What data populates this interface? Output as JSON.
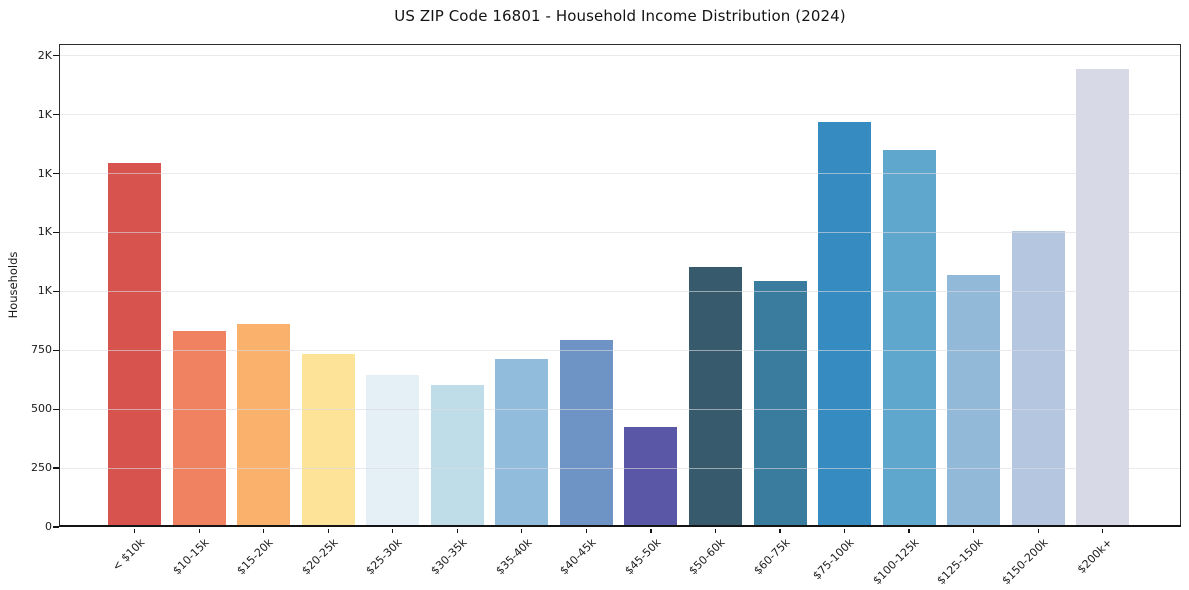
{
  "figure": {
    "title": "US ZIP Code 16801 - Household Income Distribution (2024)"
  },
  "y_axis": {
    "label": "Households",
    "tick_values": [
      0,
      250,
      500,
      750,
      1000,
      1250,
      1500,
      1750,
      2000
    ],
    "tick_labels": [
      "0",
      "250",
      "500",
      "750",
      "1K",
      "1K",
      "1K",
      "1K",
      "2K"
    ]
  },
  "chart_data": {
    "type": "bar",
    "title": "US ZIP Code 16801 - Household Income Distribution (2024)",
    "xlabel": "",
    "ylabel": "Households",
    "ylim": [
      0,
      2050
    ],
    "grid": "horizontal-light",
    "legend_position": "none",
    "categories": [
      "< $10k",
      "$10-15k",
      "$15-20k",
      "$20-25k",
      "$25-30k",
      "$30-35k",
      "$35-40k",
      "$40-45k",
      "$45-50k",
      "$50-60k",
      "$60-75k",
      "$75-100k",
      "$100-125k",
      "$125-150k",
      "$150-200k",
      "$200k+"
    ],
    "values": [
      1545,
      830,
      860,
      735,
      645,
      605,
      715,
      795,
      425,
      1105,
      1045,
      1720,
      1600,
      1070,
      1255,
      1945
    ],
    "bar_colors": [
      "#d6534e",
      "#f08262",
      "#f9b16c",
      "#fce398",
      "#e4f0f6",
      "#bedde8",
      "#92bcdb",
      "#6e94c5",
      "#5a57a7",
      "#375a6c",
      "#3a7c9e",
      "#368cc0",
      "#5fa7cc",
      "#93b9d8",
      "#b5c7e0",
      "#d8d9e6"
    ],
    "y_tick_values": [
      0,
      250,
      500,
      750,
      1000,
      1250,
      1500,
      1750,
      2000
    ],
    "y_tick_labels": [
      "0",
      "250",
      "500",
      "750",
      "1K",
      "1K",
      "1K",
      "1K",
      "2K"
    ]
  }
}
